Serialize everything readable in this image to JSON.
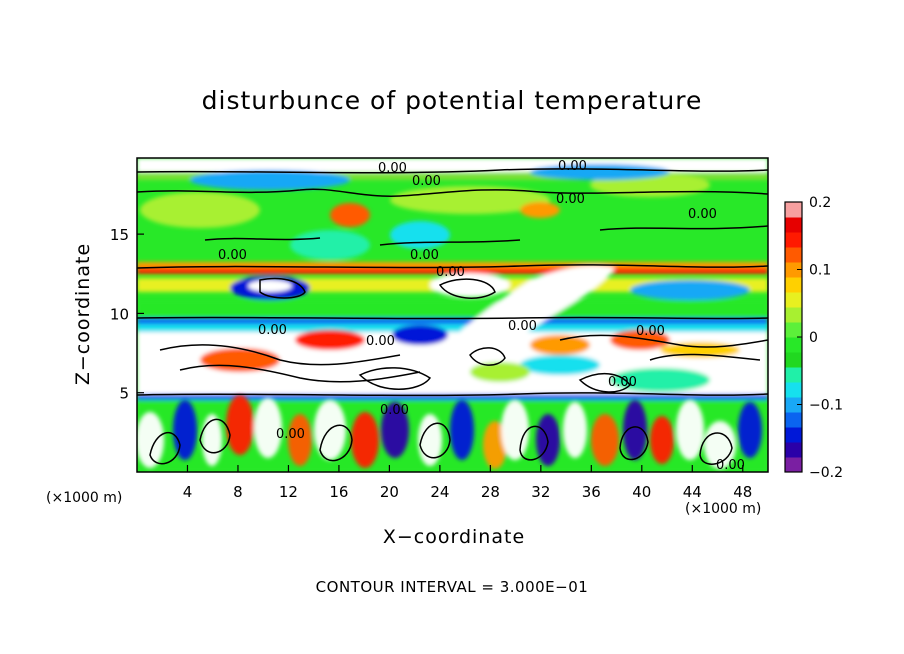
{
  "chart_data": {
    "type": "heatmap",
    "title": "disturbunce of potential temperature",
    "xlabel": "X−coordinate",
    "ylabel": "Z−coordinate",
    "x_unit_label": "(×1000 m)",
    "x_ticks": [
      4,
      8,
      12,
      16,
      20,
      24,
      28,
      32,
      36,
      40,
      44,
      48
    ],
    "y_ticks": [
      5,
      10,
      15
    ],
    "xlim": [
      0,
      50
    ],
    "ylim": [
      0,
      19.8
    ],
    "colorbar": {
      "range": [
        -0.2,
        0.2
      ],
      "tick_values": [
        0.2,
        0.1,
        0,
        -0.1,
        -0.2
      ],
      "tick_labels": [
        "0.2",
        "0.1",
        "0",
        "−0.1",
        "−0.2"
      ],
      "colors": [
        "#7a1fa2",
        "#2a00a8",
        "#0018d8",
        "#0a64f0",
        "#19a8f6",
        "#16e0ee",
        "#20f0a8",
        "#21d820",
        "#28e828",
        "#5cf03a",
        "#a8f030",
        "#e8f020",
        "#ffd000",
        "#ff9a00",
        "#ff5a00",
        "#ff1a00",
        "#e60000",
        "#f7a0a0"
      ]
    },
    "contour_label": "0.00",
    "contour_interval_text": "CONTOUR INTERVAL = 3.000E−01",
    "grid": false,
    "legend": "colorbar-right"
  }
}
